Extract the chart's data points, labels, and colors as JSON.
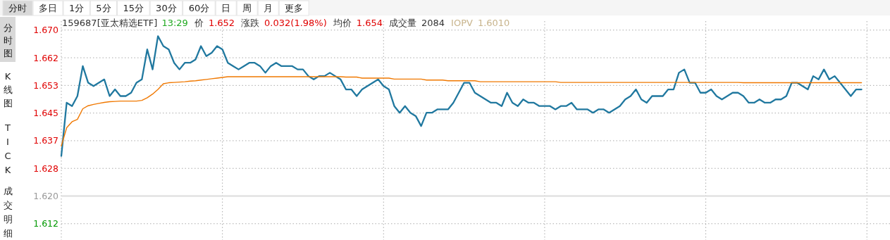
{
  "chart_data": {
    "type": "line",
    "title": "159687[亚太精选ETF]",
    "annotations": [
      "分时",
      "多日",
      "1分",
      "5分",
      "15分",
      "30分",
      "60分",
      "日",
      "周",
      "月",
      "更多",
      "分时图",
      "K线图",
      "TICK",
      "成交明细",
      "13:29",
      "价",
      "1.652",
      "涨跌",
      "0.032(1.98%)",
      "均价",
      "1.654",
      "成交量",
      "2084",
      "IOPV",
      "1.6010"
    ],
    "categories": [
      null,
      null,
      null,
      null,
      null,
      null,
      null,
      null,
      null,
      null,
      null,
      null,
      null,
      null,
      null,
      null,
      null,
      null,
      null,
      null,
      null,
      null,
      null,
      null,
      null,
      null,
      null,
      null,
      null,
      null,
      null,
      null,
      null,
      null,
      null,
      null,
      null,
      null,
      null,
      null,
      null,
      null,
      null,
      null,
      null,
      null,
      null,
      null,
      null,
      null,
      null,
      null,
      null,
      null,
      null,
      null,
      null,
      null,
      null,
      null,
      null,
      null,
      null,
      null,
      null,
      null,
      null,
      null,
      null,
      null,
      null,
      null,
      null,
      null,
      null,
      null,
      null,
      null,
      null,
      null,
      null,
      null,
      null,
      null,
      null,
      null,
      null,
      null,
      null,
      null,
      null,
      null,
      null,
      null,
      null,
      null,
      null,
      null,
      null,
      null,
      null,
      null,
      null,
      null,
      null,
      null,
      null,
      null,
      null,
      null,
      null,
      null,
      null,
      null,
      null,
      null,
      null,
      null,
      null,
      null,
      null,
      null,
      null,
      null,
      null,
      null,
      null,
      null,
      null,
      null,
      null,
      null,
      null,
      null,
      null,
      null,
      null,
      null,
      null,
      null,
      null,
      null,
      null,
      null,
      null,
      null,
      null,
      null,
      null,
      null
    ],
    "series": [
      {
        "color": "#20789f",
        "values": [
          1.632,
          1.648,
          1.647,
          1.65,
          1.659,
          1.654,
          1.653,
          1.654,
          1.655,
          1.65,
          1.652,
          1.65,
          1.65,
          1.651,
          1.654,
          1.655,
          1.664,
          1.658,
          1.668,
          1.665,
          1.664,
          1.66,
          1.658,
          1.66,
          1.66,
          1.661,
          1.665,
          1.662,
          1.663,
          1.665,
          1.664,
          1.66,
          1.659,
          1.658,
          1.659,
          1.66,
          1.66,
          1.659,
          1.657,
          1.659,
          1.66,
          1.659,
          1.659,
          1.659,
          1.658,
          1.658,
          1.656,
          1.655,
          1.656,
          1.656,
          1.657,
          1.656,
          1.655,
          1.652,
          1.652,
          1.65,
          1.652,
          1.653,
          1.654,
          1.655,
          1.653,
          1.652,
          1.647,
          1.645,
          1.647,
          1.645,
          1.644,
          1.641,
          1.645,
          1.645,
          1.646,
          1.646,
          1.646,
          1.648,
          1.651,
          1.654,
          1.654,
          1.651,
          1.65,
          1.649,
          1.648,
          1.648,
          1.647,
          1.651,
          1.648,
          1.647,
          1.649,
          1.648,
          1.648,
          1.647,
          1.647,
          1.647,
          1.646,
          1.647,
          1.647,
          1.648,
          1.646,
          1.646,
          1.646,
          1.645,
          1.646,
          1.646,
          1.645,
          1.646,
          1.647,
          1.649,
          1.65,
          1.652,
          1.649,
          1.648,
          1.65,
          1.65,
          1.65,
          1.652,
          1.652,
          1.657,
          1.658,
          1.654,
          1.654,
          1.651,
          1.651,
          1.652,
          1.65,
          1.649,
          1.65,
          1.651,
          1.651,
          1.65,
          1.648,
          1.648,
          1.649,
          1.648,
          1.648,
          1.649,
          1.649,
          1.65,
          1.654,
          1.654,
          1.653,
          1.652,
          1.656,
          1.655,
          1.658,
          1.655,
          1.656,
          1.654,
          1.652,
          1.65,
          1.652,
          1.652
        ]
      },
      {
        "color": "#f07800",
        "values": [
          1.635,
          1.6405,
          1.6423,
          1.643,
          1.6462,
          1.6471,
          1.6475,
          1.6478,
          1.6481,
          1.6483,
          1.6484,
          1.6485,
          1.6485,
          1.6485,
          1.6485,
          1.6487,
          1.6495,
          1.6506,
          1.652,
          1.6537,
          1.654,
          1.6541,
          1.6542,
          1.6543,
          1.6545,
          1.6546,
          1.6548,
          1.655,
          1.6552,
          1.6554,
          1.6556,
          1.6558,
          1.6558,
          1.6558,
          1.6558,
          1.6558,
          1.6558,
          1.6558,
          1.6558,
          1.6558,
          1.6558,
          1.6558,
          1.6558,
          1.6558,
          1.6558,
          1.6558,
          1.6558,
          1.6558,
          1.6558,
          1.6558,
          1.6558,
          1.6558,
          1.6558,
          1.6557,
          1.6557,
          1.6557,
          1.6554,
          1.6554,
          1.6554,
          1.6554,
          1.6554,
          1.6554,
          1.6551,
          1.6551,
          1.6551,
          1.6551,
          1.6551,
          1.6551,
          1.6548,
          1.6548,
          1.6548,
          1.6548,
          1.6546,
          1.6546,
          1.6546,
          1.6546,
          1.6546,
          1.6546,
          1.6543,
          1.6543,
          1.6543,
          1.6543,
          1.6543,
          1.6543,
          1.6543,
          1.6543,
          1.6543,
          1.6543,
          1.6543,
          1.6543,
          1.6543,
          1.6543,
          1.6543,
          1.6541,
          1.6541,
          1.6541,
          1.6541,
          1.6541,
          1.6541,
          1.6541,
          1.6541,
          1.6541,
          1.6541,
          1.6541,
          1.6541,
          1.6541,
          1.6541,
          1.6541,
          1.6541,
          1.6541,
          1.6541,
          1.6541,
          1.6541,
          1.6541,
          1.6541,
          1.6541,
          1.6541,
          1.6541,
          1.6541,
          1.6541,
          1.6541,
          1.6541,
          1.6541,
          1.6541,
          1.6541,
          1.6541,
          1.6541,
          1.654,
          1.654,
          1.654,
          1.654,
          1.654,
          1.654,
          1.654,
          1.654,
          1.654,
          1.654,
          1.654,
          1.654,
          1.654,
          1.654,
          1.654,
          1.654,
          1.654,
          1.654,
          1.654,
          1.654,
          1.654,
          1.654,
          1.654
        ]
      }
    ],
    "ylim": [
      1.6068,
      1.6725
    ],
    "yticks": [
      {
        "value": 1.6117,
        "label": "1.612"
      },
      {
        "value": 1.62,
        "label": "1.620"
      },
      {
        "value": 1.6283,
        "label": "1.628"
      },
      {
        "value": 1.6366,
        "label": "1.637"
      },
      {
        "value": 1.6449,
        "label": "1.645"
      },
      {
        "value": 1.6532,
        "label": "1.653"
      },
      {
        "value": 1.6615,
        "label": "1.662"
      },
      {
        "value": 1.6698,
        "label": "1.670"
      }
    ],
    "ref_lines": [
      {
        "axis": "y",
        "value": 1.62,
        "color": "#dcdcdc"
      }
    ],
    "grid": true,
    "line_style": "solid"
  }
}
